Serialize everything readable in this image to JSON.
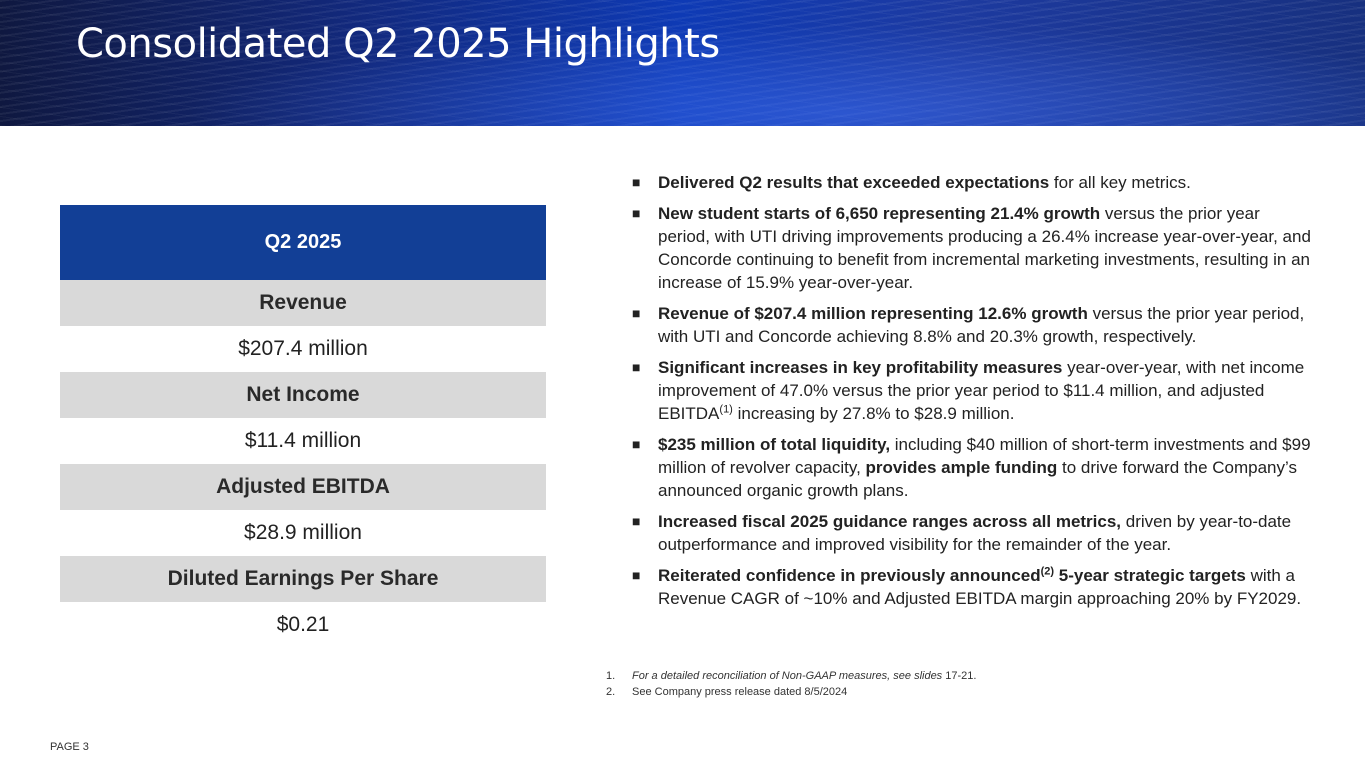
{
  "header": {
    "title": "Consolidated Q2 2025 Highlights"
  },
  "metrics": {
    "heading": "Q2 2025",
    "rows": [
      {
        "label": "Revenue",
        "value": "$207.4 million"
      },
      {
        "label": "Net Income",
        "value": "$11.4 million"
      },
      {
        "label": "Adjusted EBITDA",
        "value": "$28.9 million"
      },
      {
        "label": "Diluted Earnings Per Share",
        "value": "$0.21"
      }
    ]
  },
  "bullets": [
    {
      "bold": "Delivered Q2 results that exceeded expectations",
      "text": " for all key metrics."
    },
    {
      "bold": "New student starts of 6,650 representing 21.4% growth",
      "text": " versus the prior year period, with UTI driving improvements producing a 26.4% increase year-over-year, and Concorde continuing to benefit from incremental marketing investments, resulting in an increase of 15.9% year-over-year."
    },
    {
      "bold": "Revenue of $207.4 million representing 12.6% growth",
      "text": " versus the prior year period, with UTI and Concorde achieving 8.8% and 20.3% growth, respectively."
    },
    {
      "bold": "Significant increases in key profitability measures",
      "text": " year-over-year, with net income improvement of 47.0% versus the prior year period to $11.4 million, and adjusted EBITDA",
      "sup": "(1)",
      "text2": " increasing by 27.8% to $28.9 million."
    },
    {
      "bold": "$235 million of total liquidity,",
      "text": " including $40 million of short-term investments and $99 million of revolver capacity, ",
      "bold2": "provides ample funding",
      "text2": " to drive forward the Company’s announced organic growth plans."
    },
    {
      "bold": "Increased fiscal 2025 guidance ranges across all metrics,",
      "text": " driven by year-to-date outperformance and improved visibility for the remainder of the year."
    },
    {
      "bold": "Reiterated confidence in previously announced",
      "sup": "(2)",
      "bold2": " 5-year strategic targets",
      "text2": " with a Revenue CAGR of ~10% and Adjusted EBITDA margin approaching 20% by FY2029."
    }
  ],
  "bullet_symbol": "■",
  "footnotes": [
    {
      "num": "1.",
      "text": "For a detailed reconciliation of Non-GAAP measures, see slides",
      "pages": " 17-21."
    },
    {
      "num": "2.",
      "text": "See Company press release dated 8/5/2024"
    }
  ],
  "page_label": "PAGE 3",
  "colors": {
    "header_blue": "#0e3ab5",
    "table_header_blue": "#123f96",
    "label_gray": "#d9d9d9"
  }
}
